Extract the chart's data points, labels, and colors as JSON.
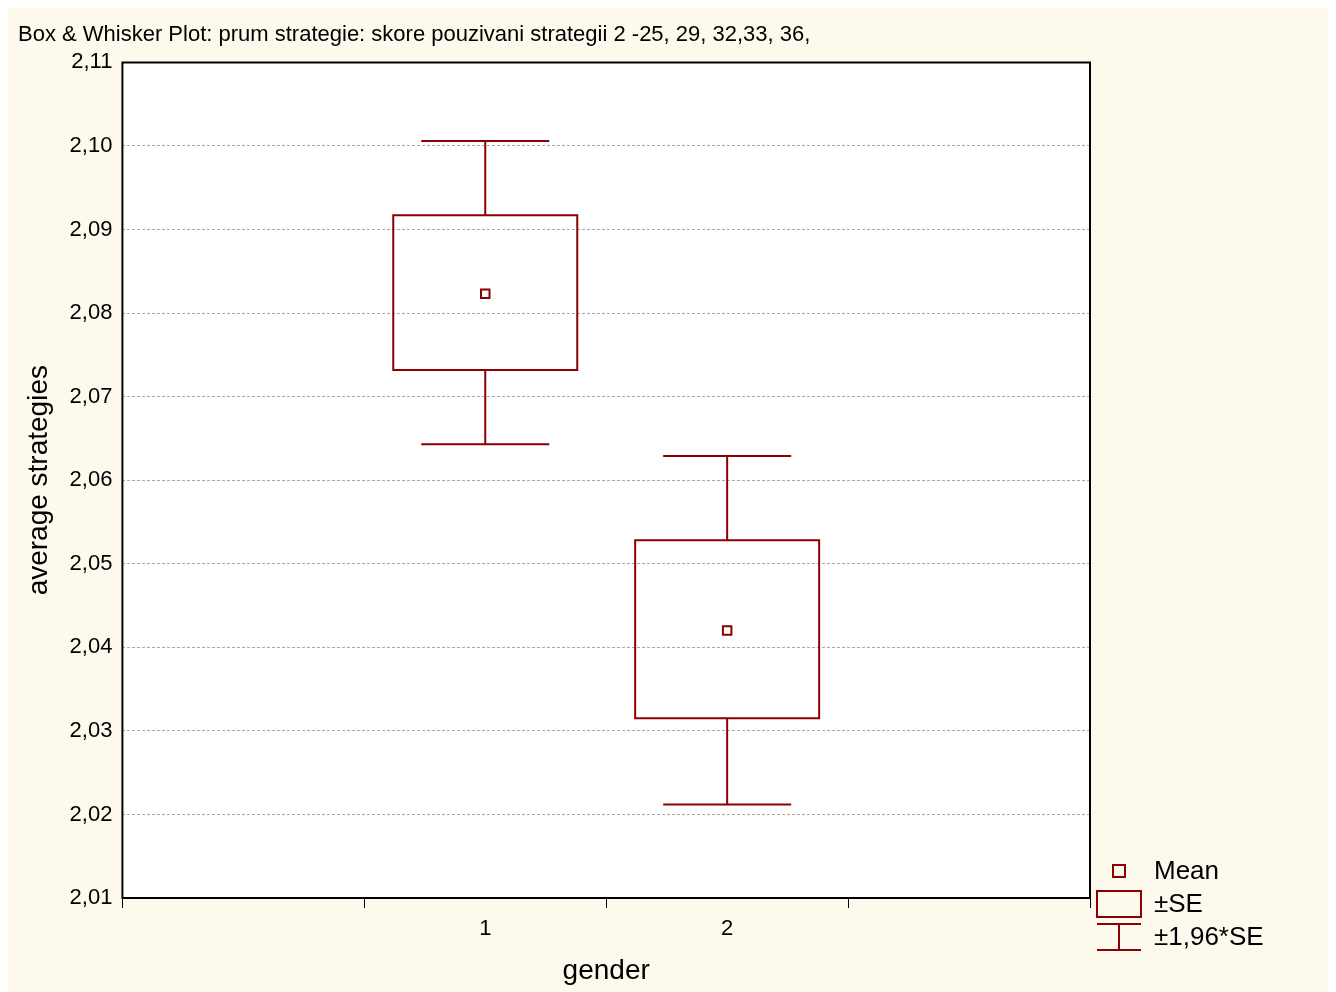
{
  "chart_data": {
    "type": "box",
    "title": "Box & Whisker Plot: prum strategie: skore pouzivani strategii 2 -25, 29, 32,33, 36,",
    "xlabel": "gender",
    "ylabel": "average strategies",
    "categories": [
      "1",
      "2"
    ],
    "color": "#8b0000",
    "boxes": [
      {
        "low": 2.0643,
        "q1": 2.0732,
        "q3": 2.0917,
        "high": 2.1006,
        "mean": 2.0823
      },
      {
        "low": 2.0212,
        "q1": 2.0315,
        "q3": 2.0528,
        "high": 2.0629,
        "mean": 2.042
      }
    ],
    "ylim": [
      2.01,
      2.11
    ],
    "yticks": [
      {
        "value": 2.01,
        "label": "2,01"
      },
      {
        "value": 2.02,
        "label": "2,02"
      },
      {
        "value": 2.03,
        "label": "2,03"
      },
      {
        "value": 2.04,
        "label": "2,04"
      },
      {
        "value": 2.05,
        "label": "2,05"
      },
      {
        "value": 2.06,
        "label": "2,06"
      },
      {
        "value": 2.07,
        "label": "2,07"
      },
      {
        "value": 2.08,
        "label": "2,08"
      },
      {
        "value": 2.09,
        "label": "2,09"
      },
      {
        "value": 2.1,
        "label": "2,10"
      },
      {
        "value": 2.11,
        "label": "2,11"
      }
    ],
    "grid": "y",
    "annotations": [
      "Mean",
      "±SE",
      "±1,96*SE"
    ]
  }
}
